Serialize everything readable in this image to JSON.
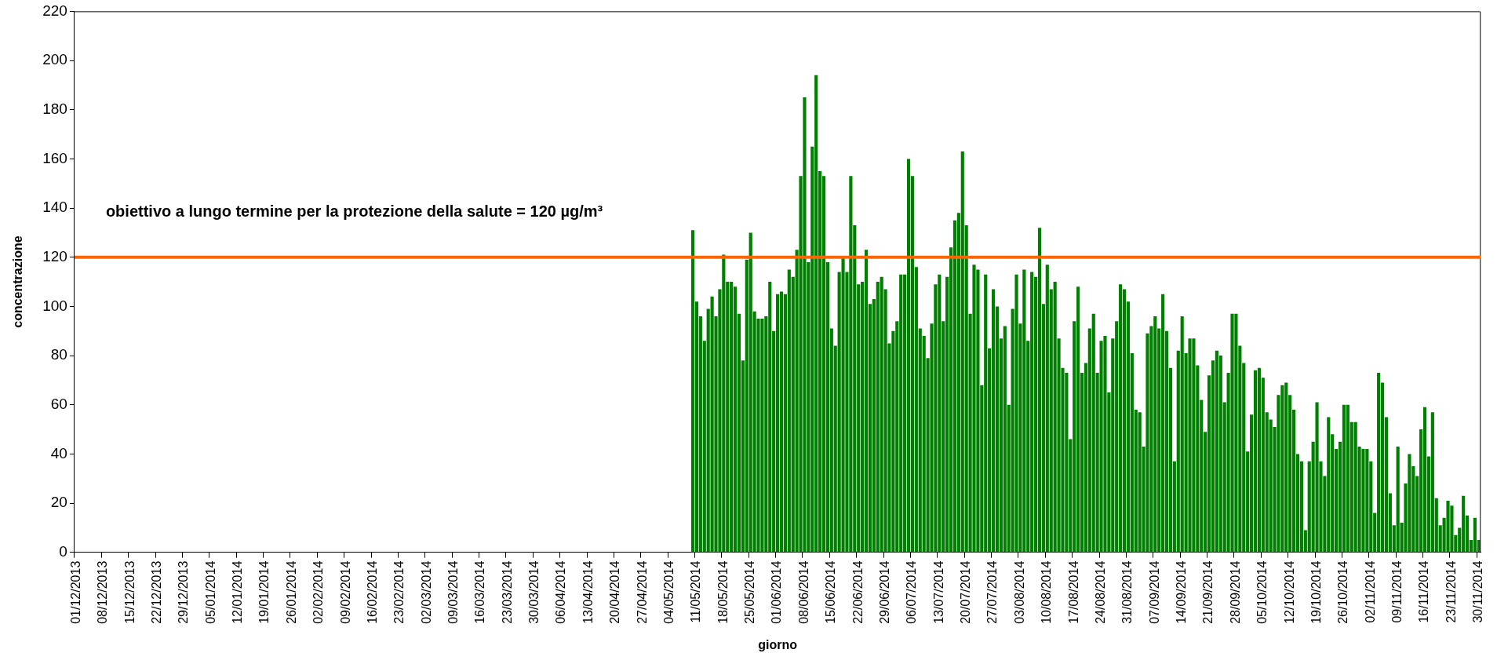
{
  "chart_data": {
    "type": "bar",
    "xlabel": "giorno",
    "ylabel": "concentrazione",
    "categories": [
      "01/12/2013",
      null,
      null,
      null,
      null,
      null,
      null,
      "08/12/2013",
      null,
      null,
      null,
      null,
      null,
      null,
      "15/12/2013",
      null,
      null,
      null,
      null,
      null,
      null,
      "22/12/2013",
      null,
      null,
      null,
      null,
      null,
      null,
      "29/12/2013",
      null,
      null,
      null,
      null,
      null,
      null,
      "05/01/2014",
      null,
      null,
      null,
      null,
      null,
      null,
      "12/01/2014",
      null,
      null,
      null,
      null,
      null,
      null,
      "19/01/2014",
      null,
      null,
      null,
      null,
      null,
      null,
      "26/01/2014",
      null,
      null,
      null,
      null,
      null,
      null,
      "02/02/2014",
      null,
      null,
      null,
      null,
      null,
      null,
      "09/02/2014",
      null,
      null,
      null,
      null,
      null,
      null,
      "16/02/2014",
      null,
      null,
      null,
      null,
      null,
      null,
      "23/02/2014",
      null,
      null,
      null,
      null,
      null,
      null,
      "02/03/2014",
      null,
      null,
      null,
      null,
      null,
      null,
      "09/03/2014",
      null,
      null,
      null,
      null,
      null,
      null,
      "16/03/2014",
      null,
      null,
      null,
      null,
      null,
      null,
      "23/03/2014",
      null,
      null,
      null,
      null,
      null,
      null,
      "30/03/2014",
      null,
      null,
      null,
      null,
      null,
      null,
      "06/04/2014",
      null,
      null,
      null,
      null,
      null,
      null,
      "13/04/2014",
      null,
      null,
      null,
      null,
      null,
      null,
      "20/04/2014",
      null,
      null,
      null,
      null,
      null,
      null,
      "27/04/2014",
      null,
      null,
      null,
      null,
      null,
      null,
      "04/05/2014",
      null,
      null,
      null,
      null,
      null,
      null,
      "11/05/2014",
      null,
      null,
      null,
      null,
      null,
      null,
      "18/05/2014",
      null,
      null,
      null,
      null,
      null,
      null,
      "25/05/2014",
      null,
      null,
      null,
      null,
      null,
      null,
      "01/06/2014",
      null,
      null,
      null,
      null,
      null,
      null,
      "08/06/2014",
      null,
      null,
      null,
      null,
      null,
      null,
      "15/06/2014",
      null,
      null,
      null,
      null,
      null,
      null,
      "22/06/2014",
      null,
      null,
      null,
      null,
      null,
      null,
      "29/06/2014",
      null,
      null,
      null,
      null,
      null,
      null,
      "06/07/2014",
      null,
      null,
      null,
      null,
      null,
      null,
      "13/07/2014",
      null,
      null,
      null,
      null,
      null,
      null,
      "20/07/2014",
      null,
      null,
      null,
      null,
      null,
      null,
      "27/07/2014",
      null,
      null,
      null,
      null,
      null,
      null,
      "03/08/2014",
      null,
      null,
      null,
      null,
      null,
      null,
      "10/08/2014",
      null,
      null,
      null,
      null,
      null,
      null,
      "17/08/2014",
      null,
      null,
      null,
      null,
      null,
      null,
      "24/08/2014",
      null,
      null,
      null,
      null,
      null,
      null,
      "31/08/2014",
      null,
      null,
      null,
      null,
      null,
      null,
      "07/09/2014",
      null,
      null,
      null,
      null,
      null,
      null,
      "14/09/2014",
      null,
      null,
      null,
      null,
      null,
      null,
      "21/09/2014",
      null,
      null,
      null,
      null,
      null,
      null,
      "28/09/2014",
      null,
      null,
      null,
      null,
      null,
      null,
      "05/10/2014",
      null,
      null,
      null,
      null,
      null,
      null,
      "12/10/2014",
      null,
      null,
      null,
      null,
      null,
      null,
      "19/10/2014",
      null,
      null,
      null,
      null,
      null,
      null,
      "26/10/2014",
      null,
      null,
      null,
      null,
      null,
      null,
      "02/11/2014",
      null,
      null,
      null,
      null,
      null,
      null,
      "09/11/2014",
      null,
      null,
      null,
      null,
      null,
      null,
      "16/11/2014",
      null,
      null,
      null,
      null,
      null,
      null,
      "23/11/2014",
      null,
      null,
      null,
      null,
      null,
      null,
      "30/11/2014"
    ],
    "series": [
      {
        "color": "#008000",
        "values": [
          null,
          null,
          null,
          null,
          null,
          null,
          null,
          null,
          null,
          null,
          null,
          null,
          null,
          null,
          null,
          null,
          null,
          null,
          null,
          null,
          null,
          null,
          null,
          null,
          null,
          null,
          null,
          null,
          null,
          null,
          null,
          null,
          null,
          null,
          null,
          null,
          null,
          null,
          null,
          null,
          null,
          null,
          null,
          null,
          null,
          null,
          null,
          null,
          null,
          null,
          null,
          null,
          null,
          null,
          null,
          null,
          null,
          null,
          null,
          null,
          null,
          null,
          null,
          null,
          null,
          null,
          null,
          null,
          null,
          null,
          null,
          null,
          null,
          null,
          null,
          null,
          null,
          null,
          null,
          null,
          null,
          null,
          null,
          null,
          null,
          null,
          null,
          null,
          null,
          null,
          null,
          null,
          null,
          null,
          null,
          null,
          null,
          null,
          null,
          null,
          null,
          null,
          null,
          null,
          null,
          null,
          null,
          null,
          null,
          null,
          null,
          null,
          null,
          null,
          null,
          null,
          null,
          null,
          null,
          null,
          null,
          null,
          null,
          null,
          null,
          null,
          null,
          null,
          null,
          null,
          null,
          null,
          null,
          null,
          null,
          null,
          null,
          null,
          null,
          null,
          null,
          null,
          null,
          null,
          null,
          null,
          null,
          null,
          null,
          null,
          null,
          null,
          null,
          null,
          null,
          null,
          null,
          null,
          null,
          null,
          131,
          102,
          96,
          86,
          99,
          104,
          96,
          107,
          121,
          110,
          110,
          108,
          97,
          78,
          119,
          130,
          98,
          95,
          95,
          96,
          110,
          90,
          105,
          106,
          105,
          115,
          112,
          123,
          153,
          185,
          118,
          165,
          194,
          155,
          153,
          118,
          91,
          84,
          114,
          120,
          114,
          153,
          133,
          109,
          110,
          123,
          101,
          103,
          110,
          112,
          107,
          85,
          90,
          94,
          113,
          113,
          160,
          153,
          116,
          91,
          88,
          79,
          93,
          109,
          113,
          94,
          112,
          124,
          135,
          138,
          163,
          133,
          97,
          117,
          115,
          68,
          113,
          83,
          107,
          100,
          87,
          92,
          60,
          99,
          113,
          93,
          115,
          86,
          114,
          112,
          132,
          101,
          117,
          107,
          110,
          87,
          75,
          73,
          46,
          94,
          108,
          73,
          77,
          91,
          97,
          73,
          86,
          88,
          65,
          87,
          94,
          109,
          107,
          102,
          81,
          58,
          57,
          43,
          89,
          92,
          96,
          91,
          105,
          90,
          75,
          37,
          82,
          96,
          81,
          87,
          87,
          76,
          62,
          49,
          72,
          78,
          82,
          80,
          61,
          73,
          97,
          97,
          84,
          77,
          41,
          56,
          74,
          75,
          71,
          57,
          54,
          51,
          64,
          68,
          69,
          64,
          58,
          40,
          37,
          9,
          37,
          45,
          61,
          37,
          31,
          55,
          48,
          42,
          45,
          60,
          60,
          53,
          53,
          43,
          42,
          42,
          37,
          16,
          73,
          69,
          55,
          24,
          11,
          43,
          12,
          28,
          40,
          35,
          31,
          50,
          59,
          39,
          57,
          22,
          11,
          14,
          21,
          19,
          7,
          10,
          23,
          15,
          5,
          14,
          5
        ]
      }
    ],
    "ylim": [
      0,
      220
    ],
    "yticks": [
      0,
      20,
      40,
      60,
      80,
      100,
      120,
      140,
      160,
      180,
      200,
      220
    ],
    "ref_lines": [
      {
        "axis": "y",
        "value": 120,
        "color": "#ff6600",
        "label": "obiettivo a lungo termine per la protezione della salute = 120 µg/m³"
      }
    ],
    "grid": false,
    "legend": false
  }
}
